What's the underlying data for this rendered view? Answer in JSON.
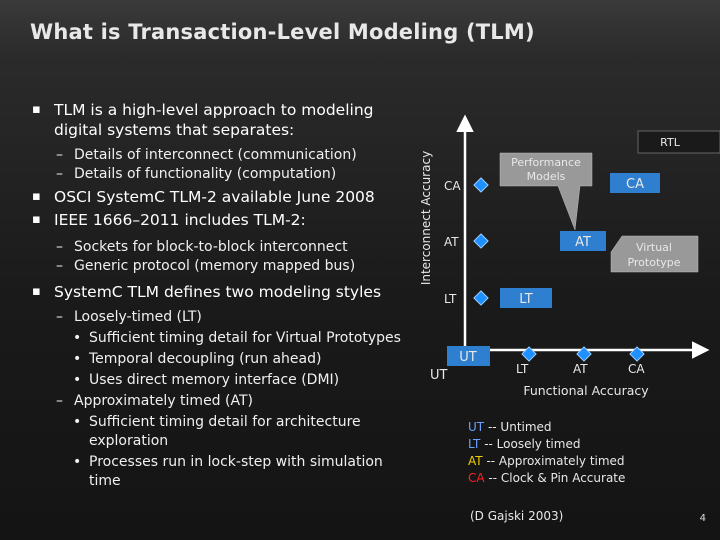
{
  "title": "What is Transaction-Level Modeling (TLM)",
  "bullets": [
    {
      "level": 1,
      "text": "TLM is a high-level approach to modeling digital systems that separates:"
    },
    {
      "level": 2,
      "text": "Details of interconnect (communication)"
    },
    {
      "level": 2,
      "text": "Details of functionality (computation)"
    },
    {
      "level": 1,
      "text": "OSCI SystemC TLM-2 available June 2008"
    },
    {
      "level": 1,
      "text": "IEEE 1666–2011 includes TLM-2:"
    },
    {
      "level": 2,
      "text": "Sockets for block-to-block interconnect"
    },
    {
      "level": 2,
      "text": "Generic protocol (memory mapped bus)"
    },
    {
      "level": 1,
      "text": "SystemC TLM defines two modeling styles"
    },
    {
      "level": 2,
      "text": "Loosely-timed (LT)"
    },
    {
      "level": 3,
      "text": "Sufficient timing detail for Virtual Prototypes"
    },
    {
      "level": 3,
      "text": "Temporal decoupling (run ahead)"
    },
    {
      "level": 3,
      "text": "Uses direct memory interface (DMI)"
    },
    {
      "level": 2,
      "text": "Approximately timed (AT)"
    },
    {
      "level": 3,
      "text": "Sufficient timing detail for architecture exploration"
    },
    {
      "level": 3,
      "text": "Processes run in lock-step with simulation time"
    }
  ],
  "diagram": {
    "y_axis_label": "Interconnect Accuracy",
    "x_axis_label": "Functional Accuracy",
    "y_levels": [
      "CA",
      "AT",
      "LT"
    ],
    "x_levels": [
      "LT",
      "AT",
      "CA"
    ],
    "origin_label": "UT",
    "ut_box": "UT",
    "lt_box": "LT",
    "at_box": "AT",
    "ca_box": "CA",
    "rtl_label": "RTL",
    "callout_performance": [
      "Performance",
      "Models"
    ],
    "callout_virtual": [
      "Virtual",
      "Prototype"
    ],
    "legend": [
      {
        "abbr": "UT",
        "desc": "-- Untimed",
        "color": "#6aa0ff"
      },
      {
        "abbr": "LT",
        "desc": "-- Loosely timed",
        "color": "#6aa0ff"
      },
      {
        "abbr": "AT",
        "desc": "-- Approximately timed",
        "color": "#f0d000"
      },
      {
        "abbr": "CA",
        "desc": "-- Clock & Pin Accurate",
        "color": "#ff2020"
      }
    ],
    "citation": "(D Gajski 2003)"
  },
  "page_number": "4",
  "colors": {
    "box_fill": "#2f7fd0",
    "diamond_fill": "#1e90ff",
    "callout_fill": "#999999"
  }
}
